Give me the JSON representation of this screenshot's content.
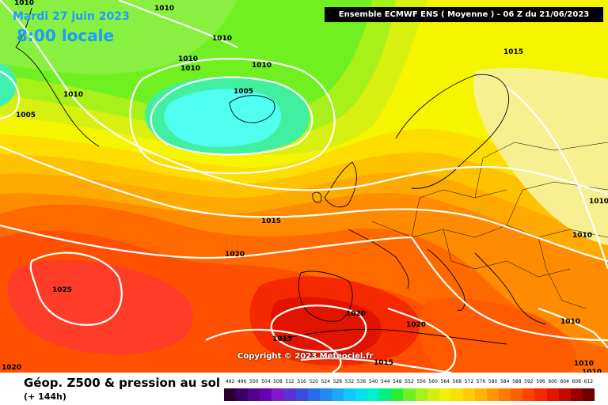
{
  "header": {
    "date_label": "Mardi 27 juin 2023",
    "time_label": "8:00 locale",
    "model_header": "Ensemble ECMWF ENS  ( Moyenne )  -  06 Z du 21/06/2023"
  },
  "map": {
    "copyright": "Copyright © 2023 Meteociel.fr",
    "isobar_labels": [
      "1010",
      "1010",
      "1010",
      "1010",
      "1010",
      "1010",
      "1005",
      "1005",
      "1015",
      "1015",
      "1020",
      "1025",
      "1020",
      "1020",
      "1015",
      "1020",
      "1015",
      "1010",
      "1010",
      "1010",
      "1010",
      "1010",
      "1010"
    ]
  },
  "footer": {
    "title": "Géop. Z500 & pression au sol",
    "subtitle": "(+ 144h)"
  },
  "legend": {
    "labels": [
      "492",
      "496",
      "500",
      "504",
      "508",
      "512",
      "516",
      "520",
      "524",
      "528",
      "532",
      "536",
      "540",
      "544",
      "548",
      "552",
      "556",
      "560",
      "564",
      "568",
      "572",
      "576",
      "580",
      "584",
      "588",
      "592",
      "596",
      "600",
      "604",
      "608",
      "612"
    ],
    "colors": [
      "#2a0033",
      "#3d0066",
      "#52008c",
      "#6a00b3",
      "#7f19cc",
      "#5a32d6",
      "#3a4be0",
      "#2a6be8",
      "#1f8cf0",
      "#18aaf5",
      "#10c8f8",
      "#00e0f0",
      "#00f0c8",
      "#00f080",
      "#28f030",
      "#70f020",
      "#a8f01a",
      "#d0f010",
      "#f0f000",
      "#f8e000",
      "#ffcc00",
      "#ffb400",
      "#ff9800",
      "#ff7c00",
      "#ff6000",
      "#ff4400",
      "#f52800",
      "#e01400",
      "#c00a00",
      "#980000",
      "#700000"
    ]
  }
}
